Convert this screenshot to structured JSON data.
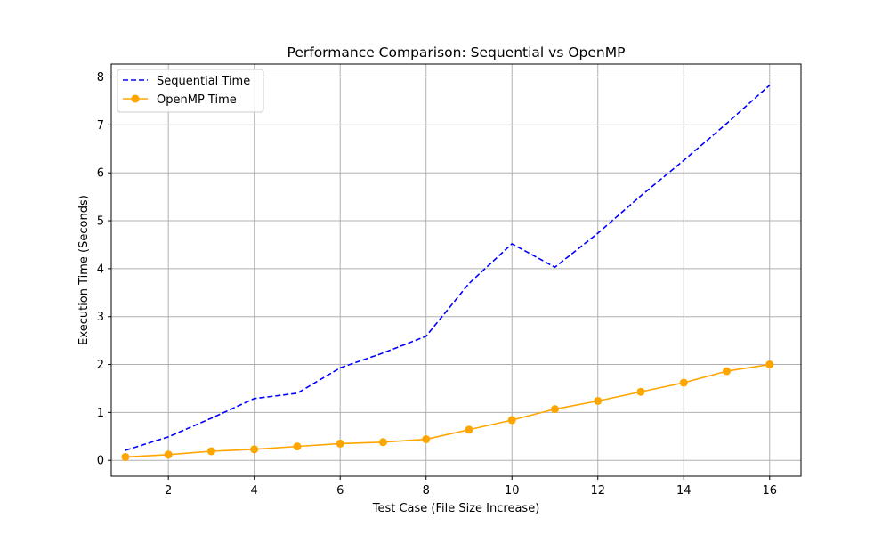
{
  "chart_data": {
    "type": "line",
    "title": "Performance Comparison: Sequential vs OpenMP",
    "xlabel": "Test Case (File Size Increase)",
    "ylabel": "Execution Time (Seconds)",
    "x": [
      1,
      2,
      3,
      4,
      5,
      6,
      7,
      8,
      9,
      10,
      11,
      12,
      13,
      14,
      15,
      16
    ],
    "xlim": [
      0.67,
      16.73
    ],
    "ylim": [
      -0.33,
      8.27
    ],
    "xticks": [
      2,
      4,
      6,
      8,
      10,
      12,
      14,
      16
    ],
    "yticks": [
      0,
      1,
      2,
      3,
      4,
      5,
      6,
      7,
      8
    ],
    "grid": true,
    "legend_position": "top-left",
    "series": [
      {
        "name": "Sequential Time",
        "color": "#0000ff",
        "style": "dashed",
        "marker": "none",
        "values": [
          0.21,
          0.49,
          0.88,
          1.29,
          1.4,
          1.93,
          2.24,
          2.59,
          3.69,
          4.52,
          4.03,
          4.74,
          5.52,
          6.26,
          7.03,
          7.83
        ]
      },
      {
        "name": "OpenMP Time",
        "color": "#ffa500",
        "style": "solid",
        "marker": "circle",
        "values": [
          0.07,
          0.12,
          0.19,
          0.23,
          0.29,
          0.35,
          0.38,
          0.44,
          0.64,
          0.84,
          1.07,
          1.24,
          1.43,
          1.62,
          1.86,
          2.0
        ]
      }
    ]
  }
}
